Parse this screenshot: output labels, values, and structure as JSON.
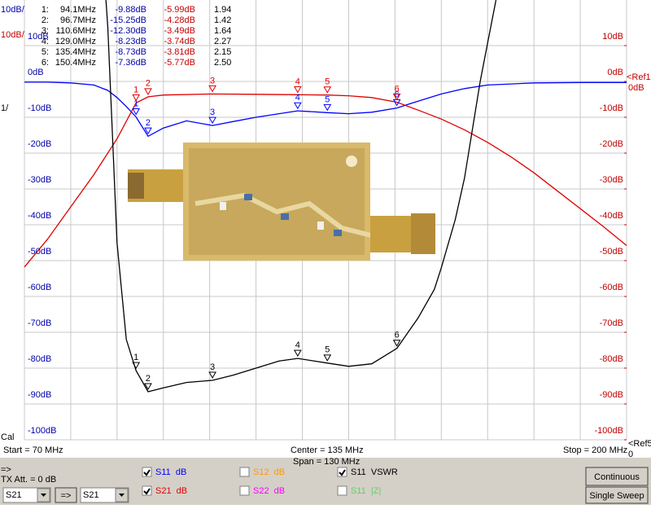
{
  "markers": {
    "rows": [
      [
        "1:",
        "94.1MHz",
        "-9.88dB",
        "-5.99dB",
        "1.94"
      ],
      [
        "2:",
        "96.7MHz",
        "-15.25dB",
        "-4.28dB",
        "1.42"
      ],
      [
        "3:",
        "110.6MHz",
        "-12.30dB",
        "-3.49dB",
        "1.64"
      ],
      [
        "4:",
        "129.0MHz",
        "-8.23dB",
        "-3.74dB",
        "2.27"
      ],
      [
        "5:",
        "135.4MHz",
        "-8.73dB",
        "-3.81dB",
        "2.15"
      ],
      [
        "6:",
        "150.4MHz",
        "-7.36dB",
        "-5.77dB",
        "2.50"
      ]
    ],
    "plot_labels": [
      "1",
      "2",
      "3",
      "4",
      "5",
      "6"
    ]
  },
  "plot": {
    "xlim": [
      70,
      200
    ],
    "ylim": [
      -100,
      20
    ],
    "xticks": [
      70,
      80,
      90,
      100,
      110,
      120,
      130,
      140,
      150,
      160,
      170,
      180,
      190,
      200
    ],
    "left_scale": "10dB/",
    "right_scale": "10dB/",
    "left_ticks": [
      {
        "value": 10,
        "label": "10dB"
      },
      {
        "value": 0,
        "label": "0dB"
      },
      {
        "value": -10,
        "label": "-10dB"
      },
      {
        "value": -20,
        "label": "-20dB"
      },
      {
        "value": -30,
        "label": "-30dB"
      },
      {
        "value": -40,
        "label": "-40dB"
      },
      {
        "value": -50,
        "label": "-50dB"
      },
      {
        "value": -60,
        "label": "-60dB"
      },
      {
        "value": -70,
        "label": "-70dB"
      },
      {
        "value": -80,
        "label": "-80dB"
      },
      {
        "value": -90,
        "label": "-90dB"
      },
      {
        "value": -100,
        "label": "-100dB"
      }
    ],
    "right_ticks": [
      {
        "value": 10,
        "label": "10dB"
      },
      {
        "value": 0,
        "label": "0dB"
      },
      {
        "value": -10,
        "label": "-10dB"
      },
      {
        "value": -20,
        "label": "-20dB"
      },
      {
        "value": -30,
        "label": "-30dB"
      },
      {
        "value": -40,
        "label": "-40dB"
      },
      {
        "value": -50,
        "label": "-50dB"
      },
      {
        "value": -60,
        "label": "-60dB"
      },
      {
        "value": -70,
        "label": "-70dB"
      },
      {
        "value": -80,
        "label": "-80dB"
      },
      {
        "value": -90,
        "label": "-90dB"
      },
      {
        "value": -100,
        "label": "-100dB"
      }
    ],
    "ref_top": [
      "<Ref1",
      "0dB"
    ],
    "ref_bottom": [
      "<Ref5",
      "0"
    ],
    "left_notes": [
      "1/",
      "Cal"
    ],
    "traces": [
      {
        "name": "S11  dB",
        "color": "#0000ff",
        "checked": true,
        "x": [
          70,
          75,
          80,
          85,
          88,
          90,
          92,
          94.1,
          96.7,
          100,
          105,
          110.6,
          115,
          120,
          125,
          129,
          135.4,
          140,
          145,
          150.4,
          155,
          160,
          165,
          170,
          180,
          190,
          200
        ],
        "values": [
          -0.2,
          -0.2,
          -0.4,
          -1,
          -2.5,
          -4.5,
          -7,
          -9.9,
          -15.3,
          -13,
          -11,
          -12.3,
          -11.2,
          -10,
          -9,
          -8.2,
          -8.7,
          -9,
          -8.6,
          -7.4,
          -5.5,
          -3.5,
          -2,
          -1,
          -0.4,
          -0.3,
          -0.3
        ]
      },
      {
        "name": "S21  dB",
        "color": "#e00000",
        "checked": true,
        "x": [
          70,
          75,
          80,
          85,
          90,
          94.1,
          96.7,
          100,
          110.6,
          120,
          129,
          135.4,
          140,
          145,
          150.4,
          155,
          160,
          165,
          170,
          175,
          180,
          185,
          190,
          195,
          200
        ],
        "values": [
          -51.8,
          -44,
          -35,
          -26,
          -16,
          -6,
          -4.3,
          -3.8,
          -3.5,
          -3.6,
          -3.7,
          -3.8,
          -4,
          -4.5,
          -5.8,
          -8,
          -10.5,
          -13.5,
          -17,
          -21,
          -25.5,
          -30.5,
          -35.5,
          -40.5,
          -45.8
        ]
      },
      {
        "name": "S12  dB",
        "color": "#ff9900",
        "checked": false
      },
      {
        "name": "S22  dB",
        "color": "#ff00ff",
        "checked": false
      },
      {
        "name": "S11  VSWR",
        "color": "#000000",
        "checked": true,
        "x": [
          87.6,
          88,
          89,
          90,
          92,
          94.1,
          96.7,
          100,
          105,
          110.6,
          115,
          120,
          125,
          129,
          135.4,
          140,
          145,
          150.4,
          155,
          158.5,
          160,
          163,
          165,
          168.4,
          170,
          171.8
        ],
        "values": [
          22.7,
          15,
          -15,
          -45,
          -72,
          -80.7,
          -86.6,
          -85.5,
          -84,
          -83.4,
          -82,
          -80,
          -78,
          -77.3,
          -78.6,
          -79.5,
          -78.8,
          -74.5,
          -66,
          -58,
          -52,
          -38.6,
          -27,
          0,
          10.7,
          22.7
        ]
      },
      {
        "name": "S11  |Z|",
        "color": "#66cc66",
        "checked": false
      }
    ]
  },
  "footer": {
    "start": "Start = 70 MHz",
    "center": "Center = 135 MHz",
    "span": "Span = 130 MHz",
    "stop": "Stop = 200 MHz",
    "arrow": "=>",
    "tx_att": "TX Att. = 0 dB",
    "select_1": "S21",
    "arrow_button": "=>",
    "select_2": "S21",
    "continuous": "Continuous",
    "single_sweep": "Single Sweep"
  }
}
